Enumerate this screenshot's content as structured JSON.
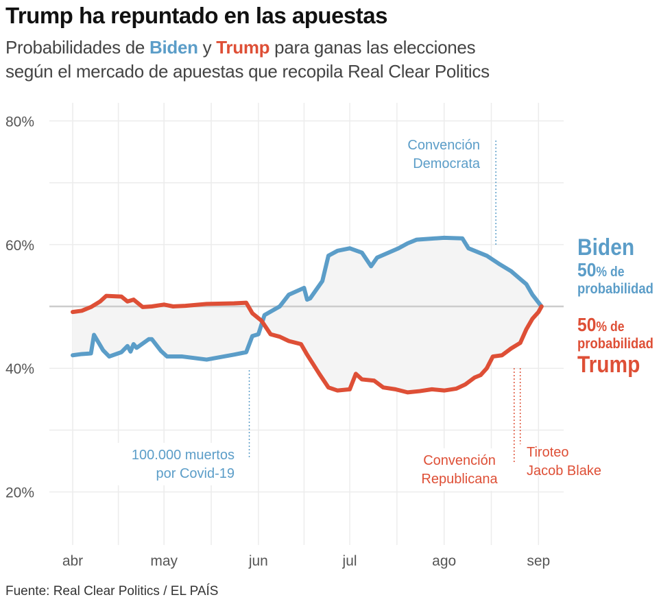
{
  "title": "Trump ha repuntado en las apuestas",
  "subtitle": {
    "part1": "Probabilidades de ",
    "biden": "Biden",
    "part2": " y ",
    "trump": "Trump",
    "part3": " para ganas las elecciones",
    "line2": "según el mercado de apuestas que recopila Real Clear Politics"
  },
  "source": "Fuente: Real Clear Politics / EL PAÍS",
  "colors": {
    "biden": "#5b9dc8",
    "trump": "#de4f36",
    "fill": "#f4f4f4",
    "grid": "#ececec",
    "fifty": "#cccccc"
  },
  "right_labels": {
    "biden_name": "Biden",
    "biden_value": "50",
    "biden_pct": "% de",
    "biden_prob": "probabilidad",
    "trump_value": "50",
    "trump_pct": "% de",
    "trump_prob": "probabilidad",
    "trump_name": "Trump"
  },
  "chart_data": {
    "type": "line",
    "title": "Trump ha repuntado en las apuestas",
    "xlabel": "",
    "ylabel": "",
    "ylim": [
      12,
      84
    ],
    "yticks": [
      {
        "value": 20,
        "label": "20%"
      },
      {
        "value": 40,
        "label": "40%"
      },
      {
        "value": 60,
        "label": "60%"
      },
      {
        "value": 80,
        "label": "80%"
      }
    ],
    "xticks": [
      {
        "date": "04-01",
        "label": "abr"
      },
      {
        "date": "05-01",
        "label": "may"
      },
      {
        "date": "06-01",
        "label": "jun"
      },
      {
        "date": "07-01",
        "label": "jul"
      },
      {
        "date": "08-01",
        "label": "ago"
      },
      {
        "date": "09-01",
        "label": "sep"
      }
    ],
    "grid": true,
    "reference_line": 50,
    "series": [
      {
        "name": "Biden",
        "color": "#5b9dc8",
        "points": [
          [
            "04-01",
            42.1
          ],
          [
            "04-04",
            42.3
          ],
          [
            "04-07",
            42.4
          ],
          [
            "04-08",
            45.4
          ],
          [
            "04-11",
            42.9
          ],
          [
            "04-13",
            41.9
          ],
          [
            "04-17",
            42.6
          ],
          [
            "04-19",
            43.6
          ],
          [
            "04-20",
            42.7
          ],
          [
            "04-21",
            43.9
          ],
          [
            "04-22",
            43.3
          ],
          [
            "04-26",
            44.7
          ],
          [
            "04-27",
            44.7
          ],
          [
            "04-30",
            42.8
          ],
          [
            "05-02",
            41.9
          ],
          [
            "05-07",
            41.9
          ],
          [
            "05-15",
            41.4
          ],
          [
            "05-24",
            42.2
          ],
          [
            "05-28",
            42.6
          ],
          [
            "05-30",
            45.2
          ],
          [
            "06-01",
            45.5
          ],
          [
            "06-03",
            48.6
          ],
          [
            "06-08",
            50.0
          ],
          [
            "06-11",
            51.9
          ],
          [
            "06-16",
            53.0
          ],
          [
            "06-17",
            51.1
          ],
          [
            "06-18",
            51.3
          ],
          [
            "06-22",
            54.1
          ],
          [
            "06-24",
            58.2
          ],
          [
            "06-27",
            59.0
          ],
          [
            "07-01",
            59.4
          ],
          [
            "07-05",
            58.7
          ],
          [
            "07-08",
            56.5
          ],
          [
            "07-10",
            57.9
          ],
          [
            "07-17",
            59.4
          ],
          [
            "07-20",
            60.2
          ],
          [
            "07-23",
            60.8
          ],
          [
            "08-01",
            61.1
          ],
          [
            "08-07",
            61.0
          ],
          [
            "08-09",
            59.4
          ],
          [
            "08-15",
            58.2
          ],
          [
            "08-19",
            56.9
          ],
          [
            "08-23",
            55.7
          ],
          [
            "08-28",
            53.6
          ],
          [
            "08-30",
            51.9
          ],
          [
            "09-02",
            50.0
          ]
        ]
      },
      {
        "name": "Trump",
        "color": "#de4f36",
        "points": [
          [
            "04-01",
            49.1
          ],
          [
            "04-04",
            49.3
          ],
          [
            "04-07",
            49.9
          ],
          [
            "04-10",
            50.8
          ],
          [
            "04-12",
            51.7
          ],
          [
            "04-17",
            51.6
          ],
          [
            "04-19",
            50.8
          ],
          [
            "04-21",
            51.1
          ],
          [
            "04-24",
            49.9
          ],
          [
            "04-27",
            50.0
          ],
          [
            "05-01",
            50.3
          ],
          [
            "05-04",
            50.0
          ],
          [
            "05-08",
            50.1
          ],
          [
            "05-15",
            50.4
          ],
          [
            "05-24",
            50.5
          ],
          [
            "05-28",
            50.6
          ],
          [
            "05-30",
            48.9
          ],
          [
            "06-02",
            47.7
          ],
          [
            "06-05",
            45.5
          ],
          [
            "06-08",
            45.1
          ],
          [
            "06-11",
            44.4
          ],
          [
            "06-15",
            43.9
          ],
          [
            "06-17",
            42.2
          ],
          [
            "06-21",
            39.1
          ],
          [
            "06-24",
            36.9
          ],
          [
            "06-27",
            36.4
          ],
          [
            "07-01",
            36.6
          ],
          [
            "07-03",
            39.1
          ],
          [
            "07-05",
            38.2
          ],
          [
            "07-09",
            38.0
          ],
          [
            "07-12",
            36.9
          ],
          [
            "07-16",
            36.6
          ],
          [
            "07-20",
            36.1
          ],
          [
            "07-24",
            36.3
          ],
          [
            "07-28",
            36.6
          ],
          [
            "08-01",
            36.4
          ],
          [
            "08-05",
            36.7
          ],
          [
            "08-08",
            37.4
          ],
          [
            "08-11",
            38.5
          ],
          [
            "08-13",
            38.9
          ],
          [
            "08-15",
            40.0
          ],
          [
            "08-17",
            41.9
          ],
          [
            "08-20",
            42.1
          ],
          [
            "08-23",
            43.2
          ],
          [
            "08-26",
            44.1
          ],
          [
            "08-28",
            46.3
          ],
          [
            "08-30",
            48.0
          ],
          [
            "09-01",
            49.1
          ],
          [
            "09-02",
            50.0
          ]
        ]
      }
    ],
    "annotations": [
      {
        "date": "05-29",
        "lines": [
          "100.000 muertos",
          "por Covid-19"
        ],
        "color": "#5b9dc8"
      },
      {
        "date": "08-18",
        "lines": [
          "Convención",
          "Democrata"
        ],
        "color": "#5b9dc8"
      },
      {
        "date": "08-24",
        "lines": [
          "Convención",
          "Republicana"
        ],
        "color": "#de4f36"
      },
      {
        "date": "08-26",
        "lines": [
          "Tiroteo",
          "Jacob Blake"
        ],
        "color": "#de4f36"
      }
    ]
  }
}
